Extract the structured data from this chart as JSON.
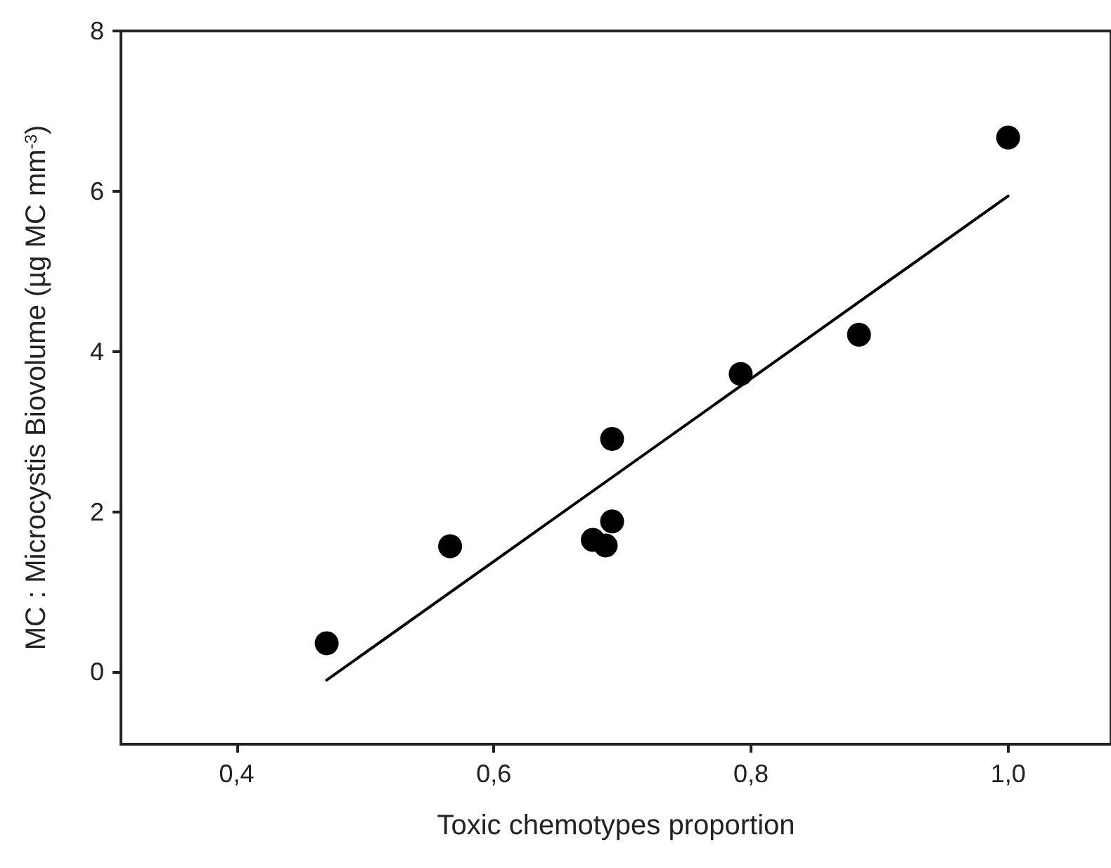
{
  "chart_data": {
    "type": "scatter",
    "xlabel": "Toxic chemotypes proportion",
    "ylabel": "MC : Microcystis Biovolume (µg MC mm$^{-3}$)",
    "xlim": [
      0.31,
      1.08
    ],
    "ylim": [
      -0.9,
      8
    ],
    "xticks": [
      {
        "value": 0.4,
        "label": "0,4"
      },
      {
        "value": 0.6,
        "label": "0,6"
      },
      {
        "value": 0.8,
        "label": "0,8"
      },
      {
        "value": 1.0,
        "label": "1,0"
      }
    ],
    "yticks": [
      0,
      2,
      4,
      6,
      8
    ],
    "grid": false,
    "marker": "circle",
    "series": [
      {
        "color": "#000000",
        "x": [
          0.47,
          0.566,
          0.677,
          0.687,
          0.692,
          0.692,
          0.792,
          0.884,
          1.0
        ],
        "values": [
          0.36,
          1.57,
          1.65,
          1.58,
          1.88,
          2.91,
          3.72,
          4.21,
          6.67
        ]
      },
      {
        "type": "line",
        "color": "#000000",
        "marker": "none",
        "line_style": "solid",
        "x": [
          0.47,
          1.0
        ],
        "values": [
          -0.1,
          5.94
        ]
      }
    ]
  }
}
